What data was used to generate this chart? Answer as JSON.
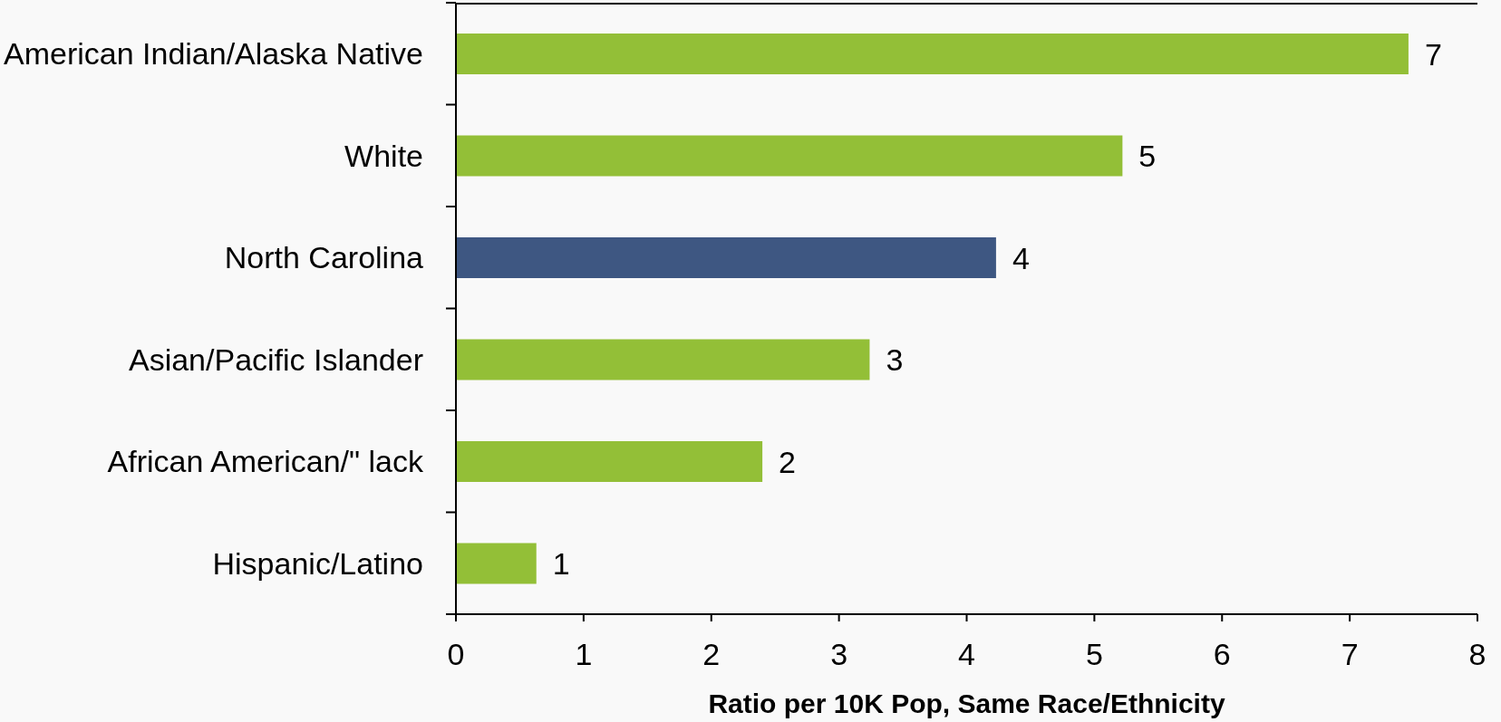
{
  "chart_data": {
    "type": "bar",
    "orientation": "horizontal",
    "categories": [
      "American Indian/Alaska Native",
      "White",
      "North Carolina",
      "Asian/Pacific Islander",
      "African American/\" lack",
      "Hispanic/Latino"
    ],
    "values": [
      7.46,
      5.22,
      4.23,
      3.24,
      2.4,
      0.63
    ],
    "colors": [
      "#93bf37",
      "#93bf37",
      "#3e5782",
      "#93bf37",
      "#93bf37",
      "#93bf37"
    ],
    "value_labels": [
      "7",
      "5",
      "4",
      "3",
      "2",
      "1"
    ],
    "xlabel": "Ratio per 10K Pop, Same Race/Ethnicity",
    "xlim": [
      0,
      8
    ],
    "xticks": [
      0,
      1,
      2,
      3,
      4,
      5,
      6,
      7,
      8
    ]
  }
}
